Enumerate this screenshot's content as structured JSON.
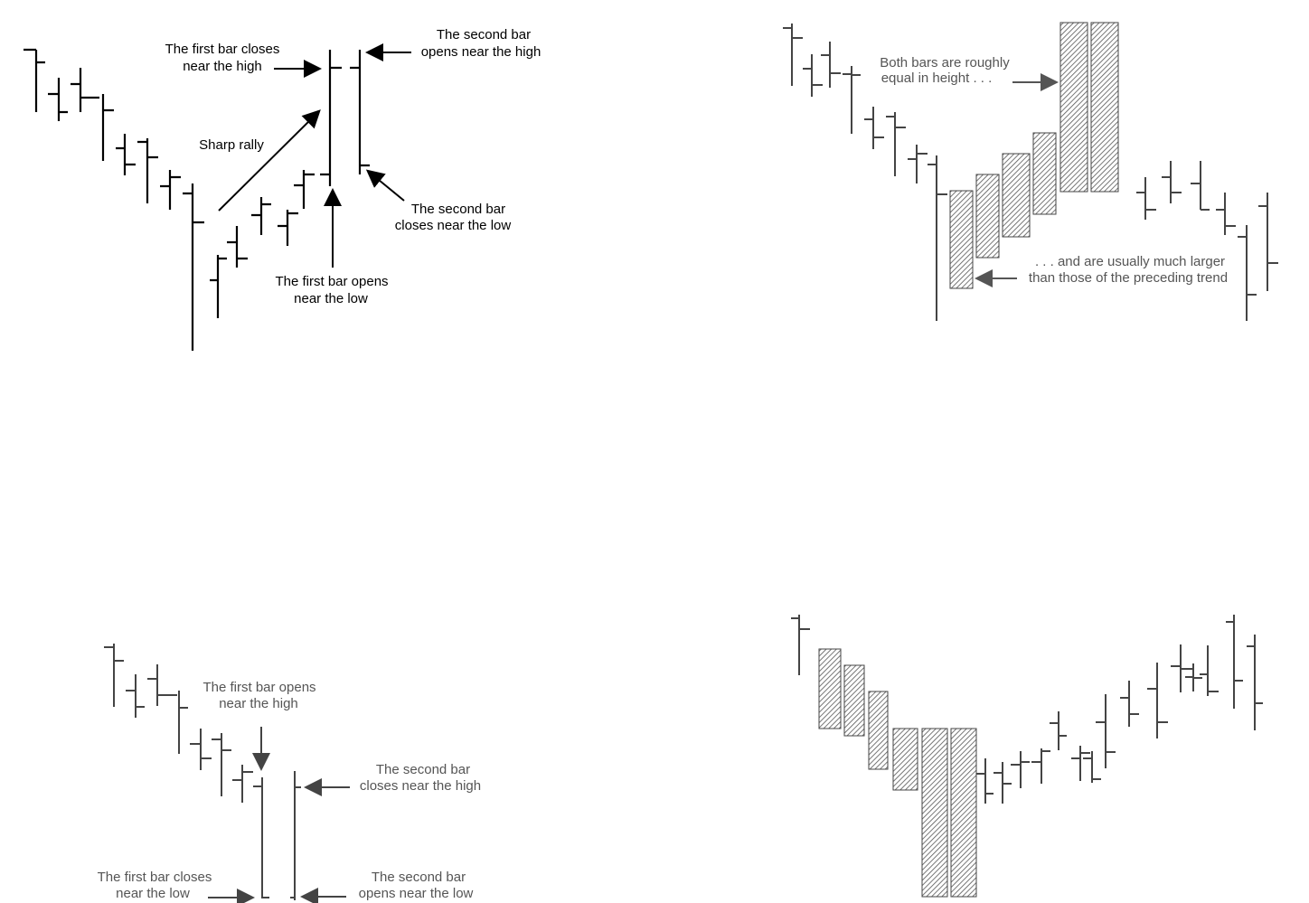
{
  "panels": {
    "p1": {
      "labels": {
        "first_close_1": "The first bar closes",
        "first_close_2": "near the high",
        "second_open_1": "The second bar",
        "second_open_2": "opens near the high",
        "rally": "Sharp rally",
        "second_close_1": "The second bar",
        "second_close_2": "closes near the low",
        "first_open_1": "The first bar opens",
        "first_open_2": "near the low"
      }
    },
    "p2": {
      "labels": {
        "both_1": "Both bars are roughly",
        "both_2": "equal in height . . .",
        "larger_1": ". . . and are usually much larger",
        "larger_2": "than those of the preceding trend"
      }
    },
    "p3": {
      "labels": {
        "first_open_1": "The first bar opens",
        "first_open_2": "near the high",
        "second_close_1": "The second bar",
        "second_close_2": "closes near the high",
        "first_close_1": "The first bar closes",
        "first_close_2": "near the low",
        "second_open_1": "The second bar",
        "second_open_2": "opens near the low"
      }
    },
    "p4": {
      "labels": {}
    }
  },
  "colors": {
    "ink": "#000000",
    "grey_ink": "#555555",
    "hatch": "#666666"
  }
}
